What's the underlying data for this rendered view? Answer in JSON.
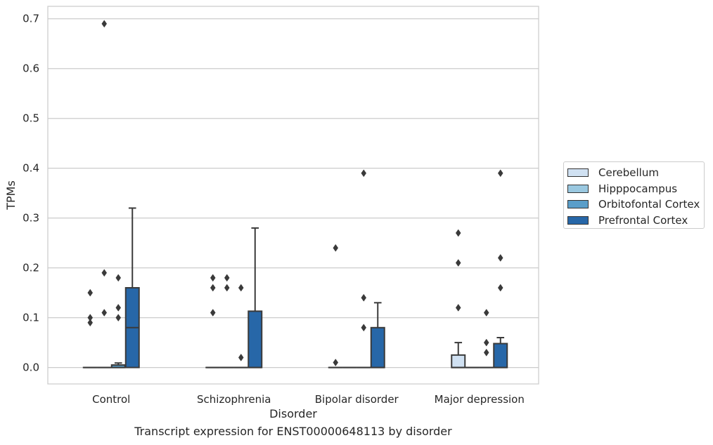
{
  "chart_data": {
    "type": "box",
    "xlabel": "Disorder",
    "ylabel": "TPMs",
    "ylim": [
      -0.033,
      0.725
    ],
    "yticks": [
      0.0,
      0.1,
      0.2,
      0.3,
      0.4,
      0.5,
      0.6,
      0.7
    ],
    "ytick_labels": [
      "0.0",
      "0.1",
      "0.2",
      "0.3",
      "0.4",
      "0.5",
      "0.6",
      "0.7"
    ],
    "categories": [
      "Control",
      "Schizophrenia",
      "Bipolar disorder",
      "Major depression"
    ],
    "grid": "horizontal",
    "legend_position": "right",
    "series": [
      {
        "name": "Cerebellum",
        "color": "#d0e1f2",
        "boxes": [
          {
            "q1": 0.0,
            "median": 0.0,
            "q3": 0.0,
            "whisker_low": 0.0,
            "whisker_high": 0.0,
            "outliers": [
              0.15,
              0.1,
              0.09
            ]
          },
          {
            "q1": 0.0,
            "median": 0.0,
            "q3": 0.0,
            "whisker_low": 0.0,
            "whisker_high": 0.0,
            "outliers": [
              0.18,
              0.16,
              0.11
            ]
          },
          {
            "q1": 0.0,
            "median": 0.0,
            "q3": 0.0,
            "whisker_low": 0.0,
            "whisker_high": 0.0,
            "outliers": [
              0.24,
              0.01
            ]
          },
          {
            "q1": 0.0,
            "median": 0.0,
            "q3": 0.025,
            "whisker_low": 0.0,
            "whisker_high": 0.05,
            "outliers": [
              0.27,
              0.21,
              0.12
            ]
          }
        ]
      },
      {
        "name": "Hipppocampus",
        "color": "#9ac8e0",
        "boxes": [
          {
            "q1": 0.0,
            "median": 0.0,
            "q3": 0.0,
            "whisker_low": 0.0,
            "whisker_high": 0.0,
            "outliers": [
              0.69,
              0.19,
              0.11
            ]
          },
          {
            "q1": 0.0,
            "median": 0.0,
            "q3": 0.0,
            "whisker_low": 0.0,
            "whisker_high": 0.0,
            "outliers": [
              0.18,
              0.16
            ]
          },
          {
            "q1": 0.0,
            "median": 0.0,
            "q3": 0.0,
            "whisker_low": 0.0,
            "whisker_high": 0.0,
            "outliers": []
          },
          {
            "q1": 0.0,
            "median": 0.0,
            "q3": 0.0,
            "whisker_low": 0.0,
            "whisker_high": 0.0,
            "outliers": []
          }
        ]
      },
      {
        "name": "Orbitofontal Cortex",
        "color": "#5a9ec9",
        "boxes": [
          {
            "q1": 0.0,
            "median": 0.0,
            "q3": 0.005,
            "whisker_low": 0.0,
            "whisker_high": 0.009,
            "outliers": [
              0.18,
              0.12,
              0.1
            ]
          },
          {
            "q1": 0.0,
            "median": 0.0,
            "q3": 0.0,
            "whisker_low": 0.0,
            "whisker_high": 0.0,
            "outliers": [
              0.16,
              0.02
            ]
          },
          {
            "q1": 0.0,
            "median": 0.0,
            "q3": 0.0,
            "whisker_low": 0.0,
            "whisker_high": 0.0,
            "outliers": [
              0.39,
              0.14,
              0.08
            ]
          },
          {
            "q1": 0.0,
            "median": 0.0,
            "q3": 0.0,
            "whisker_low": 0.0,
            "whisker_high": 0.0,
            "outliers": [
              0.11,
              0.05,
              0.03
            ]
          }
        ]
      },
      {
        "name": "Prefrontal Cortex",
        "color": "#2767a8",
        "boxes": [
          {
            "q1": 0.0,
            "median": 0.08,
            "q3": 0.16,
            "whisker_low": 0.0,
            "whisker_high": 0.32,
            "outliers": []
          },
          {
            "q1": 0.0,
            "median": 0.0,
            "q3": 0.113,
            "whisker_low": 0.0,
            "whisker_high": 0.28,
            "outliers": []
          },
          {
            "q1": 0.0,
            "median": 0.0,
            "q3": 0.08,
            "whisker_low": 0.0,
            "whisker_high": 0.13,
            "outliers": []
          },
          {
            "q1": 0.0,
            "median": 0.0,
            "q3": 0.048,
            "whisker_low": 0.0,
            "whisker_high": 0.06,
            "outliers": [
              0.39,
              0.22,
              0.16
            ]
          }
        ]
      }
    ],
    "caption": "Transcript expression for ENST00000648113 by disorder"
  }
}
